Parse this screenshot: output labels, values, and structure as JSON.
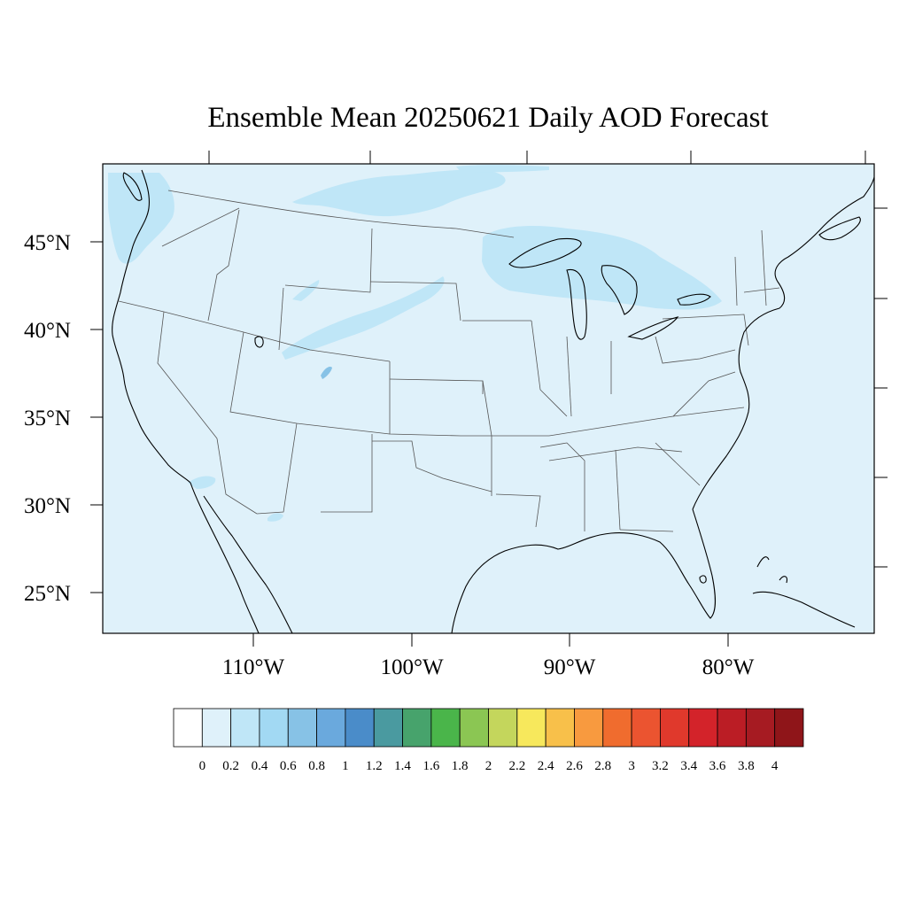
{
  "title": "Ensemble Mean 20250621 Daily AOD Forecast",
  "map": {
    "ocean_color": "#dff1fa",
    "land_color": "#dff1fa",
    "coast_color": "#000000",
    "state_border_color": "#555555",
    "latitude_labels": [
      "45°N",
      "40°N",
      "35°N",
      "30°N",
      "25°N"
    ],
    "longitude_labels": [
      "110°W",
      "100°W",
      "90°W",
      "80°W"
    ]
  },
  "aod_plumes": [
    {
      "name": "canada-north-plume",
      "level": 0.2
    },
    {
      "name": "pacific-northwest-plume",
      "level": 0.2
    },
    {
      "name": "great-lakes-plume",
      "level": 0.2
    },
    {
      "name": "wyoming-streak",
      "level": 0.2
    },
    {
      "name": "colorado-spot",
      "level": 0.4
    },
    {
      "name": "arizona-spot",
      "level": 0.2
    }
  ],
  "colorbar": {
    "labels": [
      "0",
      "0.2",
      "0.4",
      "0.6",
      "0.8",
      "1",
      "1.2",
      "1.4",
      "1.6",
      "1.8",
      "2",
      "2.2",
      "2.4",
      "2.6",
      "2.8",
      "3",
      "3.2",
      "3.4",
      "3.6",
      "3.8",
      "4"
    ],
    "colors": [
      "#ffffff",
      "#dff1fa",
      "#bfe6f7",
      "#a2d9f3",
      "#87c2e6",
      "#6aa9dd",
      "#4a8cc9",
      "#4a9aa0",
      "#47a36c",
      "#4ab54a",
      "#8bc653",
      "#c4d65c",
      "#f7e85c",
      "#f8c04a",
      "#f89a3f",
      "#f06c2e",
      "#eb5430",
      "#e0392c",
      "#d3232a",
      "#bb1d25",
      "#a61b22",
      "#8f1519"
    ]
  }
}
